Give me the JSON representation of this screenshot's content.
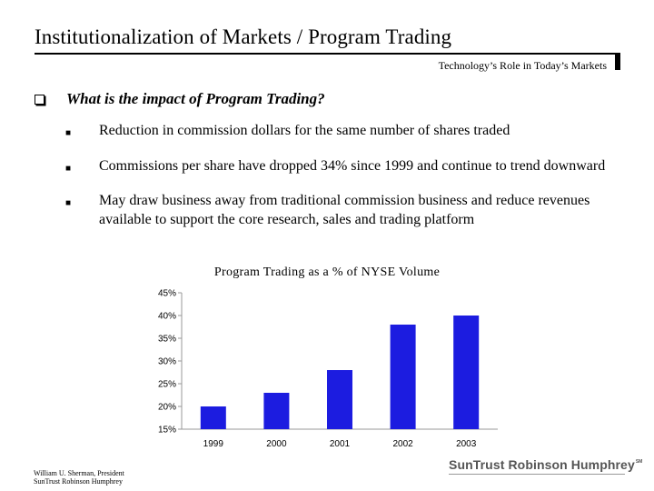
{
  "header": {
    "title": "Institutionalization of Markets / Program Trading",
    "subtitle": "Technology’s Role in Today’s Markets"
  },
  "question": "What is the impact of Program Trading?",
  "bullets": [
    "Reduction in commission dollars for the same number of shares traded",
    "Commissions per share have dropped 34% since 1999 and continue to trend downward",
    "May draw business away from traditional commission business and reduce revenues available to support the core research, sales and trading platform"
  ],
  "chart_data": {
    "type": "bar",
    "title": "Program Trading as a % of NYSE Volume",
    "categories": [
      "1999",
      "2000",
      "2001",
      "2002",
      "2003"
    ],
    "values": [
      20,
      23,
      28,
      38,
      40
    ],
    "ylim": [
      15,
      45
    ],
    "yticks": [
      "15%",
      "20%",
      "25%",
      "30%",
      "35%",
      "40%",
      "45%"
    ],
    "xlabel": "",
    "ylabel": "",
    "grid": false,
    "legend": "none",
    "bar_color": "#1c1ce0"
  },
  "footer": {
    "line1": "William U. Sherman, President",
    "line2": "SunTrust Robinson Humphrey",
    "logo": "SunTrust Robinson Humphrey",
    "logo_mark": "SM"
  }
}
